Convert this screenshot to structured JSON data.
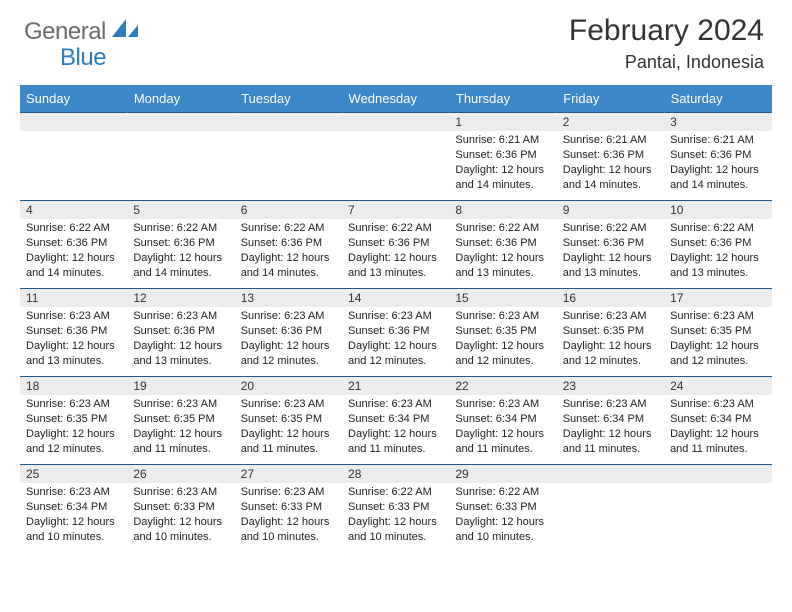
{
  "brand": {
    "general": "General",
    "blue": "Blue"
  },
  "title": "February 2024",
  "location": "Pantai, Indonesia",
  "columns": [
    "Sunday",
    "Monday",
    "Tuesday",
    "Wednesday",
    "Thursday",
    "Friday",
    "Saturday"
  ],
  "header_bg": "#3b87c8",
  "header_fg": "#ffffff",
  "daynum_bg": "#ececec",
  "border_color": "#1f5a8a",
  "logo_shape_color": "#2d7cc1",
  "weeks": [
    [
      null,
      null,
      null,
      null,
      {
        "n": "1",
        "sunrise": "Sunrise: 6:21 AM",
        "sunset": "Sunset: 6:36 PM",
        "day1": "Daylight: 12 hours",
        "day2": "and 14 minutes."
      },
      {
        "n": "2",
        "sunrise": "Sunrise: 6:21 AM",
        "sunset": "Sunset: 6:36 PM",
        "day1": "Daylight: 12 hours",
        "day2": "and 14 minutes."
      },
      {
        "n": "3",
        "sunrise": "Sunrise: 6:21 AM",
        "sunset": "Sunset: 6:36 PM",
        "day1": "Daylight: 12 hours",
        "day2": "and 14 minutes."
      }
    ],
    [
      {
        "n": "4",
        "sunrise": "Sunrise: 6:22 AM",
        "sunset": "Sunset: 6:36 PM",
        "day1": "Daylight: 12 hours",
        "day2": "and 14 minutes."
      },
      {
        "n": "5",
        "sunrise": "Sunrise: 6:22 AM",
        "sunset": "Sunset: 6:36 PM",
        "day1": "Daylight: 12 hours",
        "day2": "and 14 minutes."
      },
      {
        "n": "6",
        "sunrise": "Sunrise: 6:22 AM",
        "sunset": "Sunset: 6:36 PM",
        "day1": "Daylight: 12 hours",
        "day2": "and 14 minutes."
      },
      {
        "n": "7",
        "sunrise": "Sunrise: 6:22 AM",
        "sunset": "Sunset: 6:36 PM",
        "day1": "Daylight: 12 hours",
        "day2": "and 13 minutes."
      },
      {
        "n": "8",
        "sunrise": "Sunrise: 6:22 AM",
        "sunset": "Sunset: 6:36 PM",
        "day1": "Daylight: 12 hours",
        "day2": "and 13 minutes."
      },
      {
        "n": "9",
        "sunrise": "Sunrise: 6:22 AM",
        "sunset": "Sunset: 6:36 PM",
        "day1": "Daylight: 12 hours",
        "day2": "and 13 minutes."
      },
      {
        "n": "10",
        "sunrise": "Sunrise: 6:22 AM",
        "sunset": "Sunset: 6:36 PM",
        "day1": "Daylight: 12 hours",
        "day2": "and 13 minutes."
      }
    ],
    [
      {
        "n": "11",
        "sunrise": "Sunrise: 6:23 AM",
        "sunset": "Sunset: 6:36 PM",
        "day1": "Daylight: 12 hours",
        "day2": "and 13 minutes."
      },
      {
        "n": "12",
        "sunrise": "Sunrise: 6:23 AM",
        "sunset": "Sunset: 6:36 PM",
        "day1": "Daylight: 12 hours",
        "day2": "and 13 minutes."
      },
      {
        "n": "13",
        "sunrise": "Sunrise: 6:23 AM",
        "sunset": "Sunset: 6:36 PM",
        "day1": "Daylight: 12 hours",
        "day2": "and 12 minutes."
      },
      {
        "n": "14",
        "sunrise": "Sunrise: 6:23 AM",
        "sunset": "Sunset: 6:36 PM",
        "day1": "Daylight: 12 hours",
        "day2": "and 12 minutes."
      },
      {
        "n": "15",
        "sunrise": "Sunrise: 6:23 AM",
        "sunset": "Sunset: 6:35 PM",
        "day1": "Daylight: 12 hours",
        "day2": "and 12 minutes."
      },
      {
        "n": "16",
        "sunrise": "Sunrise: 6:23 AM",
        "sunset": "Sunset: 6:35 PM",
        "day1": "Daylight: 12 hours",
        "day2": "and 12 minutes."
      },
      {
        "n": "17",
        "sunrise": "Sunrise: 6:23 AM",
        "sunset": "Sunset: 6:35 PM",
        "day1": "Daylight: 12 hours",
        "day2": "and 12 minutes."
      }
    ],
    [
      {
        "n": "18",
        "sunrise": "Sunrise: 6:23 AM",
        "sunset": "Sunset: 6:35 PM",
        "day1": "Daylight: 12 hours",
        "day2": "and 12 minutes."
      },
      {
        "n": "19",
        "sunrise": "Sunrise: 6:23 AM",
        "sunset": "Sunset: 6:35 PM",
        "day1": "Daylight: 12 hours",
        "day2": "and 11 minutes."
      },
      {
        "n": "20",
        "sunrise": "Sunrise: 6:23 AM",
        "sunset": "Sunset: 6:35 PM",
        "day1": "Daylight: 12 hours",
        "day2": "and 11 minutes."
      },
      {
        "n": "21",
        "sunrise": "Sunrise: 6:23 AM",
        "sunset": "Sunset: 6:34 PM",
        "day1": "Daylight: 12 hours",
        "day2": "and 11 minutes."
      },
      {
        "n": "22",
        "sunrise": "Sunrise: 6:23 AM",
        "sunset": "Sunset: 6:34 PM",
        "day1": "Daylight: 12 hours",
        "day2": "and 11 minutes."
      },
      {
        "n": "23",
        "sunrise": "Sunrise: 6:23 AM",
        "sunset": "Sunset: 6:34 PM",
        "day1": "Daylight: 12 hours",
        "day2": "and 11 minutes."
      },
      {
        "n": "24",
        "sunrise": "Sunrise: 6:23 AM",
        "sunset": "Sunset: 6:34 PM",
        "day1": "Daylight: 12 hours",
        "day2": "and 11 minutes."
      }
    ],
    [
      {
        "n": "25",
        "sunrise": "Sunrise: 6:23 AM",
        "sunset": "Sunset: 6:34 PM",
        "day1": "Daylight: 12 hours",
        "day2": "and 10 minutes."
      },
      {
        "n": "26",
        "sunrise": "Sunrise: 6:23 AM",
        "sunset": "Sunset: 6:33 PM",
        "day1": "Daylight: 12 hours",
        "day2": "and 10 minutes."
      },
      {
        "n": "27",
        "sunrise": "Sunrise: 6:23 AM",
        "sunset": "Sunset: 6:33 PM",
        "day1": "Daylight: 12 hours",
        "day2": "and 10 minutes."
      },
      {
        "n": "28",
        "sunrise": "Sunrise: 6:22 AM",
        "sunset": "Sunset: 6:33 PM",
        "day1": "Daylight: 12 hours",
        "day2": "and 10 minutes."
      },
      {
        "n": "29",
        "sunrise": "Sunrise: 6:22 AM",
        "sunset": "Sunset: 6:33 PM",
        "day1": "Daylight: 12 hours",
        "day2": "and 10 minutes."
      },
      null,
      null
    ]
  ]
}
